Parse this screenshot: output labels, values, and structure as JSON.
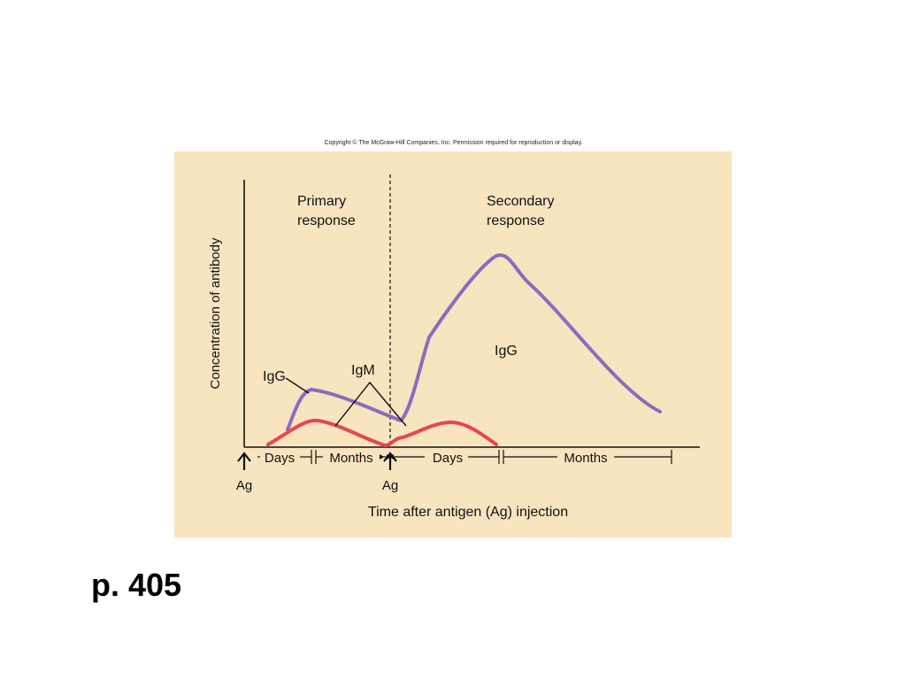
{
  "copyright": "Copyright © The McGraw-Hill Companies, Inc. Permission required for reproduction or display.",
  "figure": {
    "background_color": "#f9e4c0",
    "y_axis_label": "Concentration of antibody",
    "x_axis_label": "Time after antigen (Ag) injection",
    "primary_response_label": [
      "Primary",
      "response"
    ],
    "secondary_response_label": [
      "Secondary",
      "response"
    ],
    "igg_label_primary": "IgG",
    "igm_label": "IgM",
    "igg_label_secondary": "IgG",
    "interval_labels": [
      "Days",
      "Months",
      "Days",
      "Months"
    ],
    "antigen_markers": [
      "Ag",
      "Ag"
    ],
    "curves": [
      {
        "name": "IgG",
        "color": "#8e6bbf"
      },
      {
        "name": "IgM",
        "color": "#e8454d"
      }
    ]
  },
  "page_label": "p. 405"
}
